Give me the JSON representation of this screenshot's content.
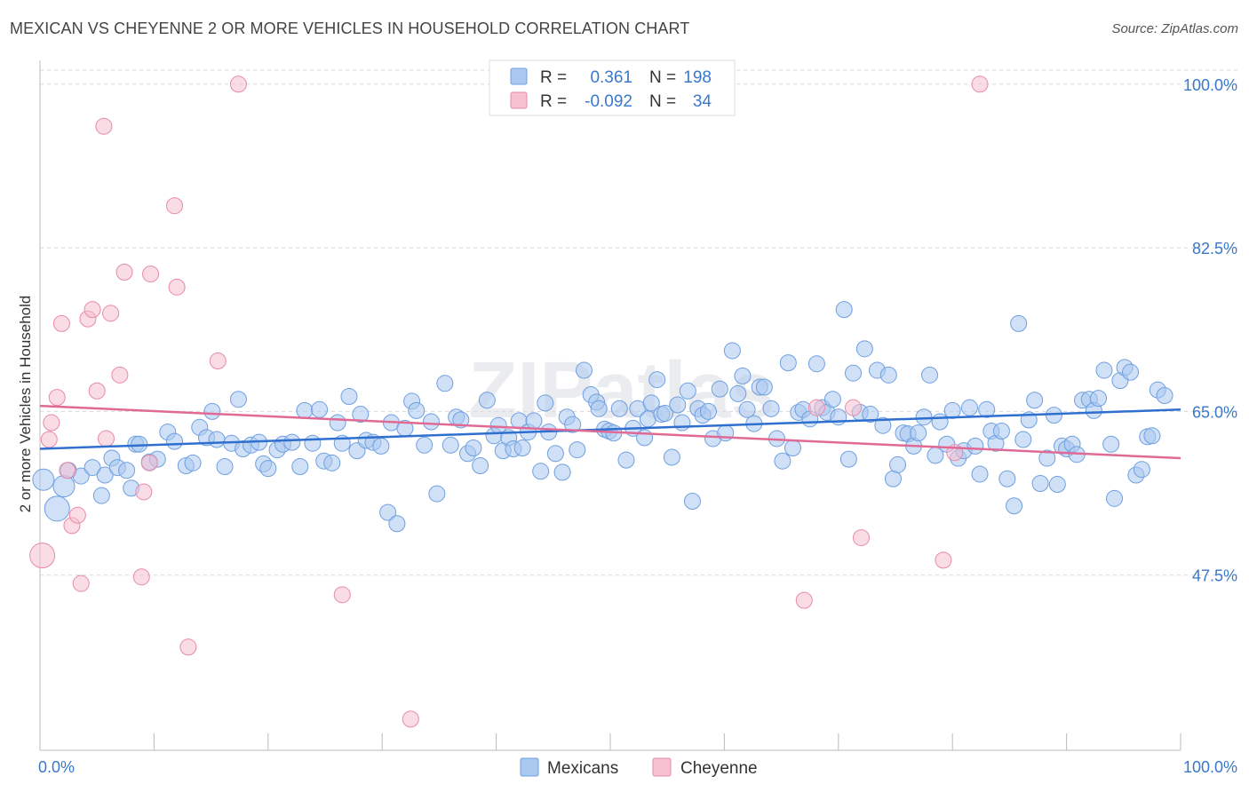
{
  "title": "MEXICAN VS CHEYENNE 2 OR MORE VEHICLES IN HOUSEHOLD CORRELATION CHART",
  "source": "Source: ZipAtlas.com",
  "watermark": "ZIPatlas",
  "colors": {
    "mexicans": "#6f9fe0",
    "mexicans_fill": "#aac8f0",
    "cheyenne": "#e88aa8",
    "cheyenne_fill": "#f5c0d0",
    "trend_mexicans": "#2f6fcf",
    "trend_cheyenne": "#e06a95",
    "axis_label": "#3a78c9"
  },
  "legend": {
    "rows": [
      {
        "r_label": "R =",
        "r_value": "0.361",
        "n_label": "N =",
        "n_value": "198"
      },
      {
        "r_label": "R =",
        "r_value": "-0.092",
        "n_label": "N =",
        "n_value": "34"
      }
    ]
  },
  "bottom_legend": [
    "Mexicans",
    "Cheyenne"
  ],
  "chart_data": {
    "type": "scatter",
    "title": "MEXICAN VS CHEYENNE 2 OR MORE VEHICLES IN HOUSEHOLD CORRELATION CHART",
    "xlabel": "",
    "ylabel": "2 or more Vehicles in Household",
    "x_tick_labels": [
      "0.0%",
      "100.0%"
    ],
    "y_tick_labels": [
      "47.5%",
      "65.0%",
      "82.5%",
      "100.0%"
    ],
    "y_ticks": [
      47.5,
      65.0,
      82.5,
      100.0
    ],
    "xlim": [
      0,
      100
    ],
    "ylim": [
      30.0,
      101.5
    ],
    "grid": "horizontal dashed",
    "legend_position": "top-center",
    "series": [
      {
        "name": "Mexicans",
        "trend": {
          "x": [
            0,
            100
          ],
          "y": [
            61.0,
            65.2
          ]
        },
        "points": [
          [
            0.3,
            57.7,
            12
          ],
          [
            1.5,
            54.6,
            14
          ],
          [
            2.1,
            57.0,
            12
          ],
          [
            2.5,
            58.7,
            9
          ],
          [
            3.6,
            58.1,
            9
          ],
          [
            4.6,
            59.0,
            9
          ],
          [
            5.4,
            56.0,
            9
          ],
          [
            5.7,
            58.2,
            9
          ],
          [
            6.3,
            60.0,
            9
          ],
          [
            6.8,
            59.0,
            9
          ],
          [
            7.6,
            58.7,
            9
          ],
          [
            8.0,
            56.8,
            9
          ],
          [
            8.4,
            61.5,
            9
          ],
          [
            8.7,
            61.5,
            9
          ],
          [
            9.6,
            59.6,
            9
          ],
          [
            10.3,
            59.9,
            9
          ],
          [
            11.2,
            62.8,
            9
          ],
          [
            11.8,
            61.8,
            9
          ],
          [
            12.8,
            59.2,
            9
          ],
          [
            13.4,
            59.5,
            9
          ],
          [
            14.0,
            63.3,
            9
          ],
          [
            14.6,
            62.2,
            9
          ],
          [
            15.1,
            65.0,
            9
          ],
          [
            15.5,
            62.0,
            9
          ],
          [
            16.2,
            59.1,
            9
          ],
          [
            16.8,
            61.6,
            9
          ],
          [
            17.4,
            66.3,
            9
          ],
          [
            17.8,
            61.0,
            9
          ],
          [
            18.5,
            61.4,
            9
          ],
          [
            19.2,
            61.7,
            9
          ],
          [
            19.6,
            59.4,
            9
          ],
          [
            20.0,
            58.9,
            9
          ],
          [
            20.8,
            60.9,
            9
          ],
          [
            21.3,
            61.5,
            9
          ],
          [
            22.1,
            61.7,
            9
          ],
          [
            22.8,
            59.1,
            9
          ],
          [
            23.2,
            65.1,
            9
          ],
          [
            23.9,
            61.6,
            9
          ],
          [
            24.5,
            65.2,
            9
          ],
          [
            24.9,
            59.7,
            9
          ],
          [
            25.6,
            59.5,
            9
          ],
          [
            26.1,
            63.8,
            9
          ],
          [
            26.5,
            61.6,
            9
          ],
          [
            27.1,
            66.6,
            9
          ],
          [
            27.8,
            60.8,
            9
          ],
          [
            28.1,
            64.7,
            9
          ],
          [
            28.6,
            61.9,
            9
          ],
          [
            29.2,
            61.7,
            9
          ],
          [
            29.9,
            61.3,
            9
          ],
          [
            30.5,
            54.2,
            9
          ],
          [
            30.8,
            63.8,
            9
          ],
          [
            31.3,
            53.0,
            9
          ],
          [
            32.0,
            63.2,
            9
          ],
          [
            32.6,
            66.1,
            9
          ],
          [
            33.0,
            65.1,
            9
          ],
          [
            33.7,
            61.4,
            9
          ],
          [
            34.3,
            63.9,
            9
          ],
          [
            34.8,
            56.2,
            9
          ],
          [
            35.5,
            68.0,
            9
          ],
          [
            36.0,
            61.4,
            9
          ],
          [
            36.5,
            64.4,
            9
          ],
          [
            36.9,
            64.1,
            9
          ],
          [
            37.5,
            60.5,
            9
          ],
          [
            38.0,
            61.1,
            9
          ],
          [
            38.6,
            59.2,
            9
          ],
          [
            39.2,
            66.2,
            9
          ],
          [
            39.8,
            62.4,
            9
          ],
          [
            40.2,
            63.5,
            9
          ],
          [
            40.6,
            60.8,
            9
          ],
          [
            41.1,
            62.2,
            9
          ],
          [
            41.5,
            61.0,
            9
          ],
          [
            42.0,
            64.0,
            9
          ],
          [
            42.3,
            61.1,
            9
          ],
          [
            42.8,
            62.8,
            9
          ],
          [
            43.3,
            64.0,
            9
          ],
          [
            43.9,
            58.6,
            9
          ],
          [
            44.3,
            65.9,
            9
          ],
          [
            44.6,
            62.8,
            9
          ],
          [
            45.2,
            60.5,
            9
          ],
          [
            45.8,
            58.5,
            9
          ],
          [
            46.2,
            64.4,
            9
          ],
          [
            46.7,
            63.6,
            9
          ],
          [
            47.1,
            60.9,
            9
          ],
          [
            47.7,
            69.4,
            9
          ],
          [
            48.3,
            66.8,
            9
          ],
          [
            48.8,
            66.0,
            9
          ],
          [
            49.0,
            65.3,
            9
          ],
          [
            49.5,
            63.1,
            9
          ],
          [
            49.9,
            62.9,
            9
          ],
          [
            50.3,
            62.7,
            9
          ],
          [
            50.8,
            65.3,
            9
          ],
          [
            51.4,
            59.8,
            9
          ],
          [
            52.0,
            63.2,
            9
          ],
          [
            52.4,
            65.3,
            9
          ],
          [
            53.0,
            62.2,
            9
          ],
          [
            53.3,
            64.2,
            9
          ],
          [
            53.6,
            65.9,
            9
          ],
          [
            54.1,
            68.4,
            9
          ],
          [
            54.5,
            64.7,
            9
          ],
          [
            54.8,
            64.8,
            9
          ],
          [
            55.4,
            60.1,
            9
          ],
          [
            55.9,
            65.7,
            9
          ],
          [
            56.3,
            63.8,
            9
          ],
          [
            56.8,
            67.2,
            9
          ],
          [
            57.2,
            55.4,
            9
          ],
          [
            57.7,
            65.3,
            9
          ],
          [
            58.1,
            64.6,
            9
          ],
          [
            58.6,
            65.0,
            9
          ],
          [
            59.0,
            62.1,
            9
          ],
          [
            59.6,
            67.4,
            9
          ],
          [
            60.1,
            62.7,
            9
          ],
          [
            60.7,
            71.5,
            9
          ],
          [
            61.2,
            66.9,
            9
          ],
          [
            61.6,
            68.8,
            9
          ],
          [
            62.0,
            65.2,
            9
          ],
          [
            62.6,
            63.7,
            9
          ],
          [
            63.1,
            67.6,
            9
          ],
          [
            63.5,
            67.6,
            9
          ],
          [
            64.1,
            65.3,
            9
          ],
          [
            64.6,
            62.1,
            9
          ],
          [
            65.1,
            59.7,
            9
          ],
          [
            65.6,
            70.2,
            9
          ],
          [
            66.0,
            61.1,
            9
          ],
          [
            66.5,
            64.9,
            9
          ],
          [
            66.9,
            65.2,
            9
          ],
          [
            67.5,
            64.2,
            9
          ],
          [
            68.1,
            70.1,
            9
          ],
          [
            68.6,
            65.4,
            9
          ],
          [
            69.0,
            64.9,
            9
          ],
          [
            69.5,
            66.3,
            9
          ],
          [
            70.0,
            64.4,
            9
          ],
          [
            70.5,
            75.9,
            9
          ],
          [
            70.9,
            59.9,
            9
          ],
          [
            71.3,
            69.1,
            9
          ],
          [
            71.9,
            64.9,
            9
          ],
          [
            72.3,
            71.7,
            9
          ],
          [
            72.8,
            64.7,
            9
          ],
          [
            73.4,
            69.4,
            9
          ],
          [
            73.9,
            63.5,
            9
          ],
          [
            74.4,
            68.9,
            9
          ],
          [
            74.8,
            57.8,
            9
          ],
          [
            75.2,
            59.3,
            9
          ],
          [
            75.7,
            62.7,
            9
          ],
          [
            76.1,
            62.6,
            9
          ],
          [
            76.6,
            61.3,
            9
          ],
          [
            77.0,
            62.7,
            9
          ],
          [
            77.5,
            64.4,
            9
          ],
          [
            78.0,
            68.9,
            9
          ],
          [
            78.5,
            60.3,
            9
          ],
          [
            78.9,
            63.9,
            9
          ],
          [
            79.5,
            61.5,
            9
          ],
          [
            80.0,
            65.1,
            9
          ],
          [
            80.5,
            60.0,
            9
          ],
          [
            81.0,
            60.8,
            9
          ],
          [
            81.5,
            65.4,
            9
          ],
          [
            82.0,
            61.3,
            9
          ],
          [
            82.4,
            58.3,
            9
          ],
          [
            83.0,
            65.2,
            9
          ],
          [
            83.4,
            62.9,
            9
          ],
          [
            83.8,
            61.6,
            9
          ],
          [
            84.3,
            62.9,
            9
          ],
          [
            84.8,
            57.8,
            9
          ],
          [
            85.4,
            54.9,
            9
          ],
          [
            85.8,
            74.4,
            9
          ],
          [
            86.2,
            62.0,
            9
          ],
          [
            86.7,
            64.1,
            9
          ],
          [
            87.2,
            66.2,
            9
          ],
          [
            87.7,
            57.3,
            9
          ],
          [
            88.3,
            60.0,
            9
          ],
          [
            88.9,
            64.6,
            9
          ],
          [
            89.2,
            57.2,
            9
          ],
          [
            89.6,
            61.3,
            9
          ],
          [
            90.0,
            61.0,
            9
          ],
          [
            90.5,
            61.5,
            9
          ],
          [
            90.9,
            60.4,
            9
          ],
          [
            91.4,
            66.2,
            9
          ],
          [
            92.0,
            66.3,
            9
          ],
          [
            92.4,
            65.1,
            9
          ],
          [
            92.8,
            66.4,
            9
          ],
          [
            93.3,
            69.4,
            9
          ],
          [
            93.9,
            61.5,
            9
          ],
          [
            94.2,
            55.7,
            9
          ],
          [
            94.7,
            68.3,
            9
          ],
          [
            95.1,
            69.7,
            9
          ],
          [
            95.6,
            69.2,
            9
          ],
          [
            96.1,
            58.2,
            9
          ],
          [
            96.6,
            58.8,
            9
          ],
          [
            97.1,
            62.3,
            9
          ],
          [
            97.5,
            62.4,
            9
          ],
          [
            98.0,
            67.3,
            9
          ],
          [
            98.6,
            66.7,
            9
          ]
        ]
      },
      {
        "name": "Cheyenne",
        "trend": {
          "x": [
            0,
            100
          ],
          "y": [
            65.6,
            60.0
          ]
        },
        "points": [
          [
            0.2,
            49.6,
            14
          ],
          [
            0.8,
            62.0,
            9
          ],
          [
            1.0,
            63.8,
            9
          ],
          [
            1.5,
            66.5,
            9
          ],
          [
            1.9,
            74.4,
            9
          ],
          [
            2.4,
            58.7,
            9
          ],
          [
            2.8,
            52.8,
            9
          ],
          [
            3.3,
            53.9,
            9
          ],
          [
            3.6,
            46.6,
            9
          ],
          [
            4.2,
            74.9,
            9
          ],
          [
            4.6,
            75.9,
            9
          ],
          [
            5.0,
            67.2,
            9
          ],
          [
            5.6,
            95.5,
            9
          ],
          [
            5.8,
            62.1,
            9
          ],
          [
            6.2,
            75.5,
            9
          ],
          [
            7.0,
            68.9,
            9
          ],
          [
            7.4,
            79.9,
            9
          ],
          [
            8.9,
            47.3,
            9
          ],
          [
            9.1,
            56.4,
            9
          ],
          [
            9.6,
            59.5,
            9
          ],
          [
            9.7,
            79.7,
            9
          ],
          [
            11.8,
            87.0,
            9
          ],
          [
            12.0,
            78.3,
            9
          ],
          [
            13.0,
            39.8,
            9
          ],
          [
            15.6,
            70.4,
            9
          ],
          [
            17.4,
            100.0,
            9
          ],
          [
            26.5,
            45.4,
            9
          ],
          [
            32.5,
            32.1,
            9
          ],
          [
            67.0,
            44.8,
            9
          ],
          [
            68.1,
            65.4,
            9
          ],
          [
            71.3,
            65.4,
            9
          ],
          [
            72.0,
            51.5,
            9
          ],
          [
            79.2,
            49.1,
            9
          ],
          [
            80.2,
            60.6,
            9
          ],
          [
            82.4,
            100.0,
            9
          ]
        ]
      }
    ]
  }
}
